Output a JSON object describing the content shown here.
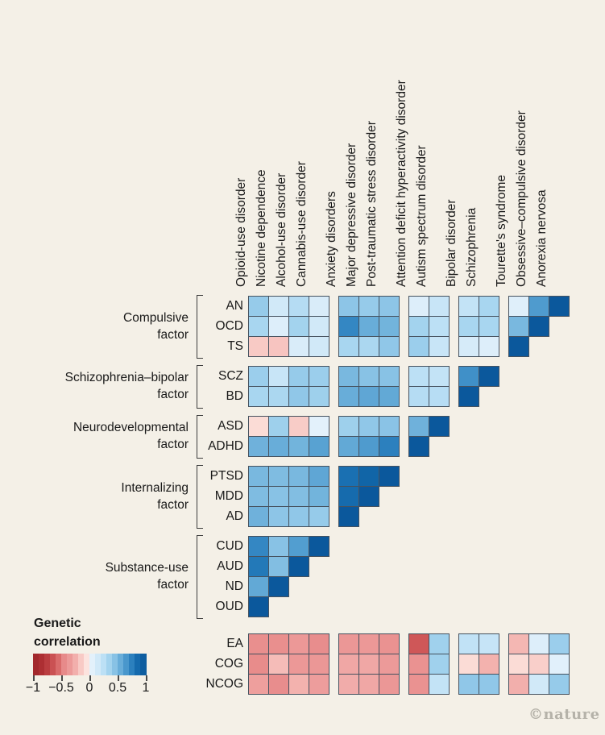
{
  "page": {
    "background": "#f4f0e7",
    "watermark": "©nature"
  },
  "legend": {
    "title": "Genetic\ncorrelation",
    "tick_labels": [
      "−1",
      "−0.5",
      "0",
      "0.5",
      "1"
    ],
    "range": [
      -1,
      1
    ],
    "segments": 20
  },
  "chart_data": {
    "type": "heatmap",
    "subtype": "lower-triangular genetic correlation matrix",
    "column_groups": [
      [
        "Opioid-use disorder",
        "Nicotine dependence",
        "Alcohol-use disorder",
        "Cannabis-use disorder"
      ],
      [
        "Anxiety disorders",
        "Major depressive disorder",
        "Post-traumatic stress disorder"
      ],
      [
        "Attention deficit hyperactivity disorder",
        "Autism spectrum disorder"
      ],
      [
        "Bipolar disorder",
        "Schizophrenia"
      ],
      [
        "Tourette's syndrome",
        "Obsessive–compulsive disorder",
        "Anorexia nervosa"
      ]
    ],
    "row_groups": [
      {
        "factor": "Compulsive\nfactor",
        "rows": [
          {
            "label": "AN",
            "values": [
              0.4,
              0.15,
              0.28,
              0.1,
              0.43,
              0.4,
              0.43,
              0.08,
              0.2,
              0.22,
              0.33,
              0.07,
              0.63,
              1
            ]
          },
          {
            "label": "OCD",
            "values": [
              0.33,
              0.08,
              0.35,
              0.15,
              0.72,
              0.55,
              0.52,
              0.35,
              0.25,
              0.33,
              0.33,
              0.5,
              1
            ]
          },
          {
            "label": "TS",
            "values": [
              -0.15,
              -0.17,
              0.1,
              0.15,
              0.33,
              0.32,
              0.42,
              0.38,
              0.2,
              0.12,
              0.08,
              1
            ]
          }
        ]
      },
      {
        "factor": "Schizophrenia–bipolar\nfactor",
        "rows": [
          {
            "label": "SCZ",
            "values": [
              0.38,
              0.2,
              0.4,
              0.38,
              0.5,
              0.45,
              0.45,
              0.25,
              0.22,
              0.68,
              1
            ]
          },
          {
            "label": "BD",
            "values": [
              0.33,
              0.32,
              0.42,
              0.37,
              0.55,
              0.58,
              0.57,
              0.28,
              0.27,
              1
            ]
          }
        ]
      },
      {
        "factor": "Neurodevelopmental\nfactor",
        "rows": [
          {
            "label": "ASD",
            "values": [
              -0.08,
              0.37,
              -0.14,
              0.05,
              0.37,
              0.42,
              0.44,
              0.53,
              1
            ]
          },
          {
            "label": "ADHD",
            "values": [
              0.53,
              0.55,
              0.52,
              0.6,
              0.57,
              0.63,
              0.75,
              1
            ]
          }
        ]
      },
      {
        "factor": "Internalizing\nfactor",
        "rows": [
          {
            "label": "PTSD",
            "values": [
              0.5,
              0.48,
              0.5,
              0.58,
              0.82,
              0.88,
              1
            ]
          },
          {
            "label": "MDD",
            "values": [
              0.48,
              0.45,
              0.47,
              0.52,
              0.85,
              1
            ]
          },
          {
            "label": "AD",
            "values": [
              0.53,
              0.43,
              0.42,
              0.4,
              1
            ]
          }
        ]
      },
      {
        "factor": "Substance-use\nfactor",
        "rows": [
          {
            "label": "CUD",
            "values": [
              0.72,
              0.45,
              0.62,
              1
            ]
          },
          {
            "label": "AUD",
            "values": [
              0.78,
              0.47,
              1
            ]
          },
          {
            "label": "ND",
            "values": [
              0.57,
              1
            ]
          },
          {
            "label": "OUD",
            "values": [
              1
            ]
          }
        ]
      }
    ],
    "bottom_rows": [
      {
        "label": "EA",
        "values": [
          -0.42,
          -0.42,
          -0.36,
          -0.43,
          -0.37,
          -0.36,
          -0.4,
          -0.62,
          0.36,
          0.23,
          0.21,
          -0.22,
          0.08,
          0.38
        ]
      },
      {
        "label": "COG",
        "values": [
          -0.44,
          -0.2,
          -0.36,
          -0.37,
          -0.28,
          -0.28,
          -0.35,
          -0.4,
          0.36,
          -0.08,
          -0.24,
          -0.08,
          -0.13,
          0.06
        ]
      },
      {
        "label": "NCOG",
        "values": [
          -0.32,
          -0.43,
          -0.24,
          -0.33,
          -0.26,
          -0.28,
          -0.37,
          -0.4,
          0.22,
          0.42,
          0.42,
          -0.25,
          0.15,
          0.4
        ]
      }
    ],
    "colormap": {
      "stops": [
        [
          -1.0,
          "#9d2428"
        ],
        [
          -0.8,
          "#b23336"
        ],
        [
          -0.6,
          "#d25b5c"
        ],
        [
          -0.45,
          "#e78a8a"
        ],
        [
          -0.3,
          "#efa2a0"
        ],
        [
          -0.2,
          "#f5bcb8"
        ],
        [
          -0.1,
          "#fad7d1"
        ],
        [
          -0.02,
          "#fdeae5"
        ],
        [
          0.02,
          "#e9f4fc"
        ],
        [
          0.1,
          "#d9ecf9"
        ],
        [
          0.2,
          "#c8e5f7"
        ],
        [
          0.3,
          "#b0daf2"
        ],
        [
          0.4,
          "#96cbea"
        ],
        [
          0.5,
          "#79b8df"
        ],
        [
          0.6,
          "#58a2d2"
        ],
        [
          0.7,
          "#3a8cc6"
        ],
        [
          0.8,
          "#1d74b5"
        ],
        [
          0.9,
          "#0e61a4"
        ],
        [
          1.0,
          "#0b589c"
        ]
      ]
    }
  }
}
